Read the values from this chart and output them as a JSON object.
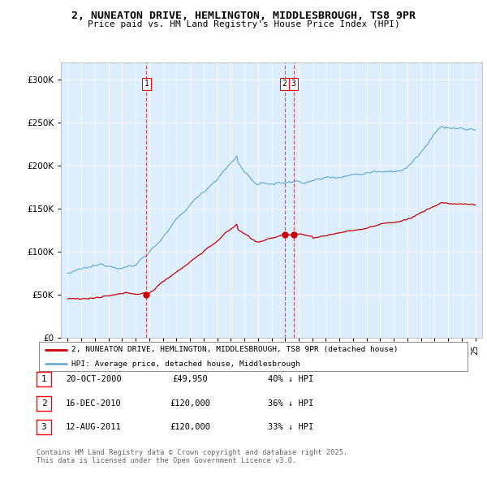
{
  "title": "2, NUNEATON DRIVE, HEMLINGTON, MIDDLESBROUGH, TS8 9PR",
  "subtitle": "Price paid vs. HM Land Registry's House Price Index (HPI)",
  "legend_line1": "2, NUNEATON DRIVE, HEMLINGTON, MIDDLESBROUGH, TS8 9PR (detached house)",
  "legend_line2": "HPI: Average price, detached house, Middlesbrough",
  "footer_line1": "Contains HM Land Registry data © Crown copyright and database right 2025.",
  "footer_line2": "This data is licensed under the Open Government Licence v3.0.",
  "transactions": [
    {
      "num": 1,
      "date": "20-OCT-2000",
      "price": "£49,950",
      "pct": "40% ↓ HPI",
      "year": 2000.8,
      "value": 49950
    },
    {
      "num": 2,
      "date": "16-DEC-2010",
      "price": "£120,000",
      "pct": "36% ↓ HPI",
      "year": 2010.96,
      "value": 120000
    },
    {
      "num": 3,
      "date": "12-AUG-2011",
      "price": "£120,000",
      "pct": "33% ↓ HPI",
      "year": 2011.62,
      "value": 120000
    }
  ],
  "hpi_color": "#6baed6",
  "price_color": "#cc0000",
  "vline_color": "#e06060",
  "bg_color": "#ddeeff",
  "ylim": [
    0,
    320000
  ],
  "yticks": [
    0,
    50000,
    100000,
    150000,
    200000,
    250000,
    300000
  ],
  "xlim_start": 1994.5,
  "xlim_end": 2025.5
}
